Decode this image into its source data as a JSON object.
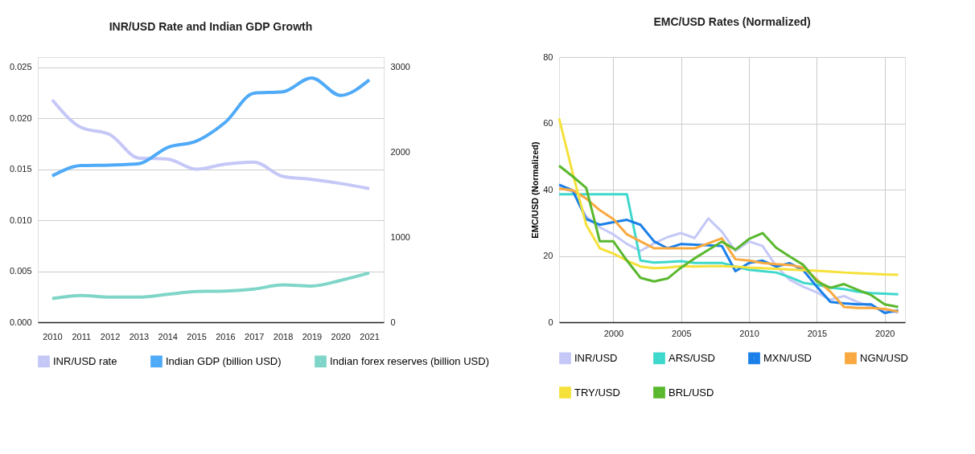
{
  "chart_data": [
    {
      "type": "line",
      "title": "INR/USD Rate and Indian GDP Growth",
      "categories": [
        "2010",
        "2011",
        "2012",
        "2013",
        "2014",
        "2015",
        "2016",
        "2017",
        "2018",
        "2019",
        "2020",
        "2021"
      ],
      "series": [
        {
          "name": "INR/USD rate",
          "color": "#c5c8f7",
          "axis": "y",
          "values": [
            0.0218,
            0.0191,
            0.0184,
            0.0161,
            0.016,
            0.015,
            0.0155,
            0.0157,
            0.0143,
            0.014,
            0.0136,
            0.0131
          ]
        },
        {
          "name": "Indian GDP (billion USD)",
          "color": "#4faaf7",
          "axis": "y2",
          "values": [
            1722,
            1843,
            1849,
            1865,
            2056,
            2131,
            2351,
            2695,
            2711,
            2875,
            2669,
            2852
          ]
        },
        {
          "name": "Indian forex reserves (billion USD)",
          "color": "#7fd6c8",
          "axis": "y2",
          "values": [
            279,
            315,
            295,
            295,
            328,
            361,
            367,
            390,
            439,
            426,
            492,
            580
          ]
        }
      ],
      "ylim": [
        0,
        0.026
      ],
      "yticks": [
        {
          "value": 0,
          "label": "0.000"
        },
        {
          "value": 0.005,
          "label": "0.005"
        },
        {
          "value": 0.01,
          "label": "0.010"
        },
        {
          "value": 0.015,
          "label": "0.015"
        },
        {
          "value": 0.02,
          "label": "0.020"
        },
        {
          "value": 0.025,
          "label": "0.025"
        }
      ],
      "y2lim": [
        0,
        3120
      ],
      "y2ticks": [
        0,
        1000,
        2000,
        3000
      ],
      "grid": "y",
      "legend": "bottom"
    },
    {
      "type": "line",
      "title": "EMC/USD Rates (Normalized)",
      "ylabel": "EMC/USD (Normalized)",
      "x": [
        1996,
        1997,
        1998,
        1999,
        2000,
        2001,
        2002,
        2003,
        2004,
        2005,
        2006,
        2007,
        2008,
        2009,
        2010,
        2011,
        2012,
        2013,
        2014,
        2015,
        2016,
        2017,
        2018,
        2019,
        2020,
        2021
      ],
      "series": [
        {
          "name": "INR/USD",
          "color": "#c5c8f7",
          "values": [
            40.7,
            39.4,
            31.9,
            28.6,
            26.5,
            23.6,
            21.5,
            23.8,
            25.7,
            26.9,
            25.4,
            31.3,
            27.3,
            21.5,
            24.4,
            23,
            16.9,
            12.8,
            10.7,
            9,
            6.8,
            7.9,
            6.1,
            4.8,
            3.6,
            2.9
          ]
        },
        {
          "name": "ARS/USD",
          "color": "#3fd8cc",
          "values": [
            38.6,
            38.6,
            38.6,
            38.6,
            38.6,
            38.6,
            18.6,
            18,
            18.2,
            18.4,
            17.9,
            17.9,
            17.9,
            16.8,
            15.8,
            15.4,
            15,
            13.6,
            11.9,
            11.3,
            10.4,
            10,
            9.2,
            8.8,
            8.6,
            8.4
          ]
        },
        {
          "name": "MXN/USD",
          "color": "#1a7fe8",
          "values": [
            41.5,
            39.8,
            31.1,
            29.4,
            30.2,
            30.9,
            29.4,
            24.4,
            22.3,
            23.6,
            23.4,
            23.2,
            23,
            15.4,
            17.9,
            18.6,
            16.8,
            17.8,
            15.7,
            10.7,
            6.1,
            5.7,
            5.4,
            5.4,
            2.8,
            3.6
          ]
        },
        {
          "name": "NGN/USD",
          "color": "#f9a93f",
          "values": [
            40.3,
            39.8,
            37.3,
            33.8,
            31.1,
            26.5,
            24.4,
            22.3,
            22.3,
            22.3,
            22.3,
            23.8,
            25.3,
            19,
            18.6,
            17.9,
            17.5,
            17.3,
            16.5,
            12.9,
            9.2,
            4.6,
            4.3,
            4.3,
            4,
            3.2
          ]
        },
        {
          "name": "TRY/USD",
          "color": "#f5e13a",
          "values": [
            61.5,
            45,
            29.4,
            22.3,
            20.7,
            18.6,
            16.8,
            16.3,
            16.5,
            16.9,
            16.8,
            16.9,
            16.9,
            16.8,
            16.5,
            16.3,
            16.1,
            15.9,
            15.7,
            15.5,
            15.3,
            15,
            14.8,
            14.6,
            14.4,
            14.3
          ]
        },
        {
          "name": "BRL/USD",
          "color": "#5ab82e",
          "values": [
            47.2,
            44,
            40.5,
            24.4,
            24.4,
            18.6,
            13.4,
            12.3,
            13.2,
            16.5,
            19.3,
            21.8,
            24.3,
            21.9,
            25.1,
            26.9,
            22.5,
            19.8,
            17.3,
            12.3,
            10.4,
            11.5,
            9.8,
            8.2,
            5.4,
            4.6
          ]
        }
      ],
      "xlim": [
        1996,
        2021.5
      ],
      "xticks": [
        2000,
        2005,
        2010,
        2015,
        2020
      ],
      "ylim": [
        0,
        80
      ],
      "yticks": [
        0,
        20,
        40,
        60,
        80
      ],
      "grid": true,
      "legend": "bottom"
    }
  ]
}
